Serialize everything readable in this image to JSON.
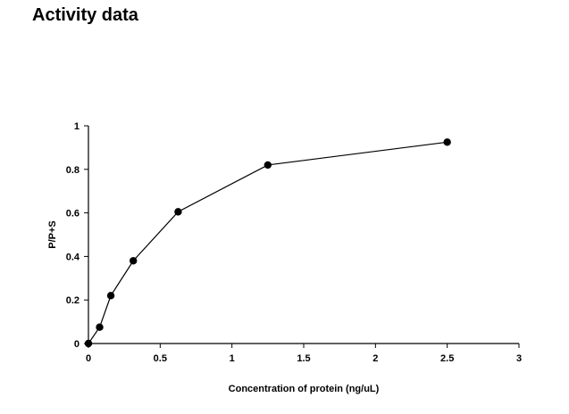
{
  "page": {
    "title": "Activity data"
  },
  "chart_data": {
    "type": "line",
    "title": "",
    "xlabel": "Concentration of protein (ng/uL)",
    "ylabel": "P/P+S",
    "xlim": [
      0,
      3
    ],
    "ylim": [
      0,
      1
    ],
    "x_ticks": [
      0,
      0.5,
      1,
      1.5,
      2,
      2.5,
      3
    ],
    "y_ticks": [
      0,
      0.2,
      0.4,
      0.6,
      0.8,
      1
    ],
    "x_tick_labels": [
      "0",
      "0.5",
      "1",
      "1.5",
      "2",
      "2.5",
      "3"
    ],
    "y_tick_labels": [
      "0",
      "0.2",
      "0.4",
      "0.6",
      "0.8",
      "1"
    ],
    "grid": false,
    "legend": "none",
    "series": [
      {
        "color": "#000000",
        "marker": "circle",
        "x": [
          0,
          0.078,
          0.156,
          0.3125,
          0.625,
          1.25,
          2.5
        ],
        "y": [
          0,
          0.075,
          0.22,
          0.38,
          0.605,
          0.82,
          0.925
        ]
      }
    ]
  }
}
